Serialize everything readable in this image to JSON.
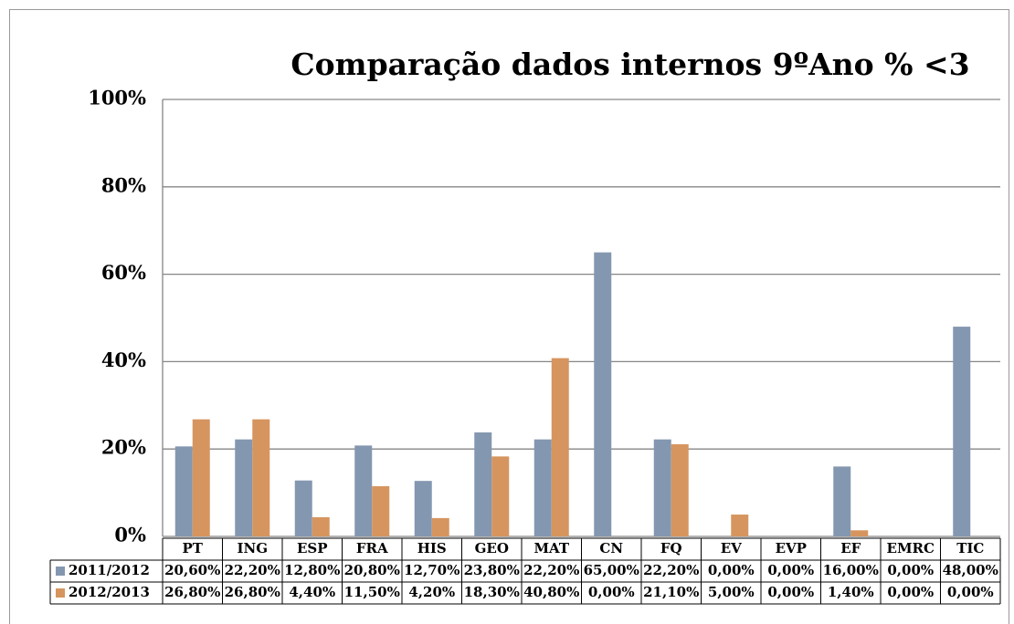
{
  "chart_data": {
    "type": "bar",
    "title": "Comparação dados internos 9ºAno % <3",
    "categories": [
      "PT",
      "ING",
      "ESP",
      "FRA",
      "HIS",
      "GEO",
      "MAT",
      "CN",
      "FQ",
      "EV",
      "EVP",
      "EF",
      "EMRC",
      "TIC"
    ],
    "series": [
      {
        "name": "2011/2012",
        "color": "#8497b0",
        "values": [
          20.6,
          22.2,
          12.8,
          20.8,
          12.7,
          23.8,
          22.2,
          65,
          22.2,
          0,
          0,
          16,
          0,
          48
        ],
        "value_labels": [
          "20,60%",
          "22,20%",
          "12,80%",
          "20,80%",
          "12,70%",
          "23,80%",
          "22,20%",
          "65,00%",
          "22,20%",
          "0,00%",
          "0,00%",
          "16,00%",
          "0,00%",
          "48,00%"
        ]
      },
      {
        "name": "2012/2013",
        "color": "#d6955f",
        "values": [
          26.8,
          26.8,
          4.4,
          11.5,
          4.2,
          18.3,
          40.8,
          0,
          21.1,
          5,
          0,
          1.4,
          0,
          0
        ],
        "value_labels": [
          "26,80%",
          "26,80%",
          "4,40%",
          "11,50%",
          "4,20%",
          "18,30%",
          "40,80%",
          "0,00%",
          "21,10%",
          "5,00%",
          "0,00%",
          "1,40%",
          "0,00%",
          "0,00%"
        ]
      }
    ],
    "ylim": [
      0,
      100
    ],
    "yticks": [
      {
        "value": 0,
        "label": "0%"
      },
      {
        "value": 20,
        "label": "20%"
      },
      {
        "value": 40,
        "label": "40%"
      },
      {
        "value": 60,
        "label": "60%"
      },
      {
        "value": 80,
        "label": "80%"
      },
      {
        "value": 100,
        "label": "100%"
      }
    ],
    "grid": true
  }
}
